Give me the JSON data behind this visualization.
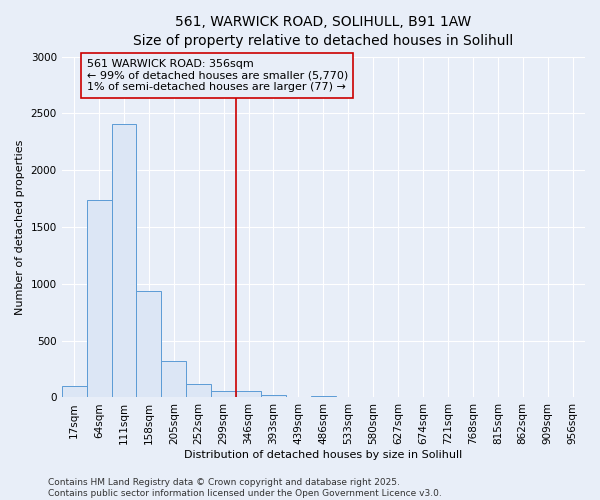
{
  "title_line1": "561, WARWICK ROAD, SOLIHULL, B91 1AW",
  "title_line2": "Size of property relative to detached houses in Solihull",
  "xlabel": "Distribution of detached houses by size in Solihull",
  "ylabel": "Number of detached properties",
  "bar_labels": [
    "17sqm",
    "64sqm",
    "111sqm",
    "158sqm",
    "205sqm",
    "252sqm",
    "299sqm",
    "346sqm",
    "393sqm",
    "439sqm",
    "486sqm",
    "533sqm",
    "580sqm",
    "627sqm",
    "674sqm",
    "721sqm",
    "768sqm",
    "815sqm",
    "862sqm",
    "909sqm",
    "956sqm"
  ],
  "bar_values": [
    100,
    1740,
    2410,
    940,
    320,
    120,
    60,
    60,
    20,
    0,
    10,
    0,
    0,
    0,
    0,
    0,
    0,
    0,
    0,
    0,
    0
  ],
  "bar_color": "#dce6f5",
  "bar_edgecolor": "#5b9bd5",
  "vline_x_idx": 7,
  "vline_color": "#cc0000",
  "annotation_text": "561 WARWICK ROAD: 356sqm\n← 99% of detached houses are smaller (5,770)\n1% of semi-detached houses are larger (77) →",
  "annotation_box_edgecolor": "#cc0000",
  "ylim": [
    0,
    3000
  ],
  "yticks": [
    0,
    500,
    1000,
    1500,
    2000,
    2500,
    3000
  ],
  "footer": "Contains HM Land Registry data © Crown copyright and database right 2025.\nContains public sector information licensed under the Open Government Licence v3.0.",
  "bg_color": "#e8eef8",
  "grid_color": "#ffffff",
  "title_fontsize": 10,
  "subtitle_fontsize": 9,
  "axis_label_fontsize": 8,
  "tick_fontsize": 7.5,
  "annotation_fontsize": 8,
  "footer_fontsize": 6.5
}
